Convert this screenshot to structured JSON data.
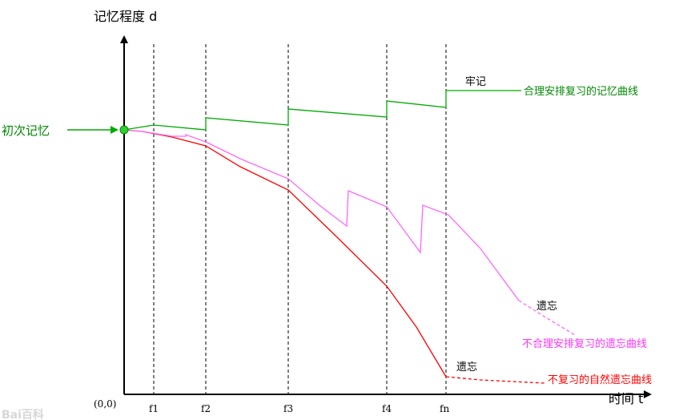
{
  "diagram": {
    "y_axis_label": "记忆程度 d",
    "x_axis_label": "时间 t",
    "origin_label": "(0,0)",
    "initial_label": "初次记忆",
    "ticks": [
      "f1",
      "f2",
      "f3",
      "f4",
      "fn"
    ],
    "labels": {
      "remember": "牢记",
      "forget_upper": "遗忘",
      "forget_lower": "遗忘",
      "green_curve": "合理安排复习的记忆曲线",
      "pink_curve": "不合理安排复习的遗忘曲线",
      "red_curve": "不复习的自然遗忘曲线"
    },
    "colors": {
      "green": "#00aa00",
      "pink": "#ff66ff",
      "red": "#ff0000",
      "label_green": "#008800"
    },
    "watermark": "Bai百科"
  }
}
